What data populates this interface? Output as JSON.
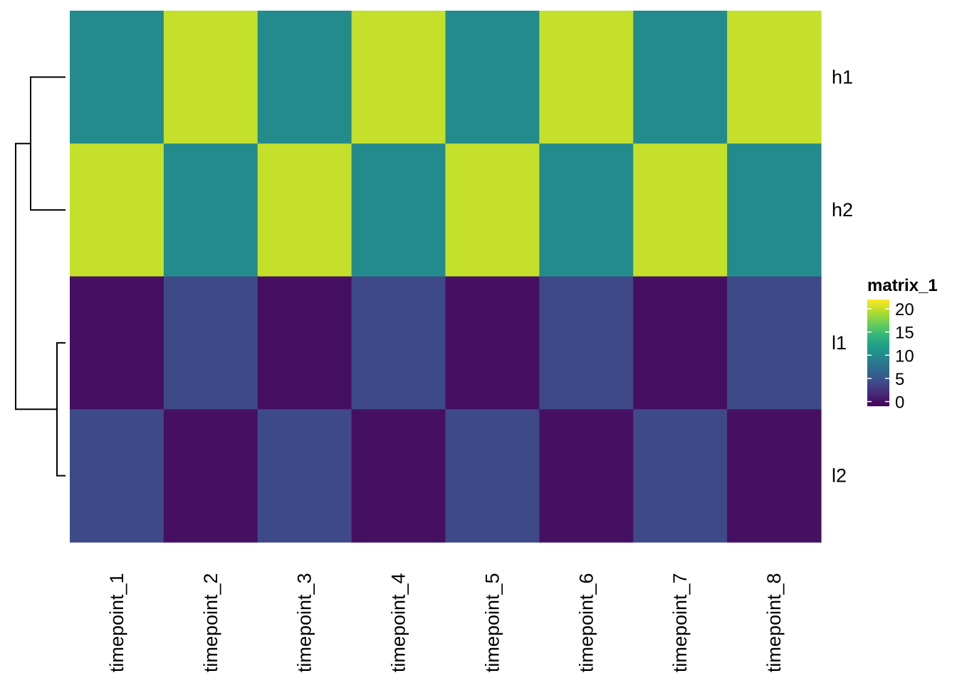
{
  "chart_data": {
    "type": "heatmap",
    "rows": [
      "h1",
      "h2",
      "l1",
      "l2"
    ],
    "columns": [
      "timepoint_1",
      "timepoint_2",
      "timepoint_3",
      "timepoint_4",
      "timepoint_5",
      "timepoint_6",
      "timepoint_7",
      "timepoint_8"
    ],
    "values": [
      [
        10,
        20,
        10,
        20,
        10,
        20,
        10,
        20
      ],
      [
        20,
        10,
        20,
        10,
        20,
        10,
        20,
        10
      ],
      [
        0,
        4,
        0,
        4,
        0,
        4,
        0,
        4
      ],
      [
        4,
        0,
        4,
        0,
        4,
        0,
        4,
        0
      ]
    ],
    "row_dendrogram": {
      "merges": [
        [
          "h1",
          "h2"
        ],
        [
          "l1",
          "l2"
        ],
        [
          "h",
          "l"
        ]
      ]
    },
    "legend": {
      "title": "matrix_1",
      "ticks": [
        0,
        5,
        10,
        15,
        20
      ],
      "tick_labels": [
        "0",
        "5",
        "10",
        "15",
        "20"
      ],
      "range": [
        -1,
        22
      ]
    },
    "colormap": "viridis",
    "colors": {
      "viridis_stops": [
        "#440154",
        "#482878",
        "#3E4A89",
        "#31688E",
        "#26828E",
        "#1F9E89",
        "#35B779",
        "#6DCD59",
        "#B4DE2C",
        "#FDE725"
      ]
    }
  }
}
